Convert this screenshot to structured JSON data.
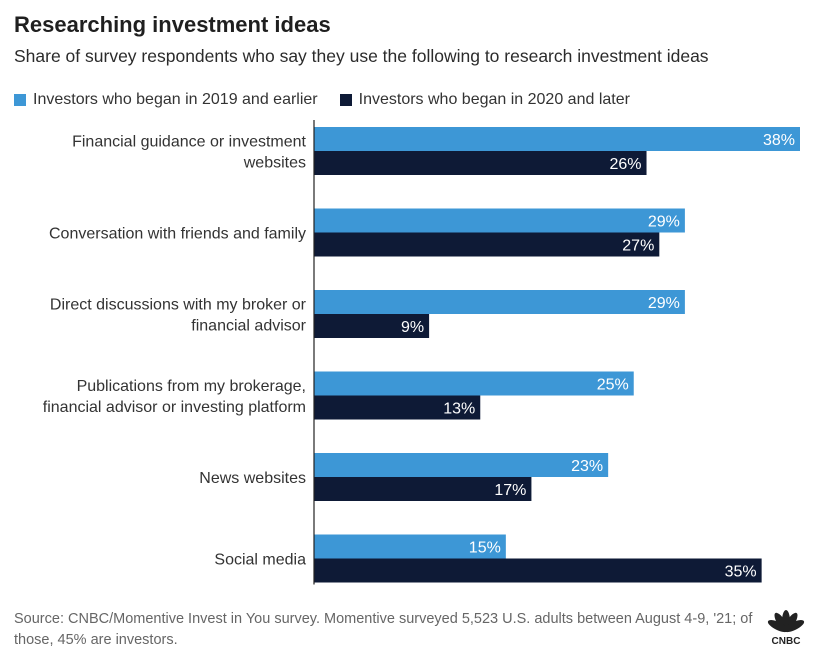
{
  "header": {
    "title": "Researching investment ideas",
    "subtitle": "Share of survey respondents who say they use the following to research investment ideas"
  },
  "legend": {
    "items": [
      {
        "label": "Investors who began in 2019 and earlier",
        "color": "#3d97d6"
      },
      {
        "label": "Investors who began in 2020 and later",
        "color": "#0e1a36"
      }
    ]
  },
  "chart_data": {
    "type": "bar",
    "orientation": "horizontal",
    "categories": [
      [
        "Financial guidance or investment",
        "websites"
      ],
      [
        "Conversation with friends and family"
      ],
      [
        "Direct discussions with my broker or",
        "financial advisor"
      ],
      [
        "Publications from my brokerage,",
        "financial advisor or investing platform"
      ],
      [
        "News websites"
      ],
      [
        "Social media"
      ]
    ],
    "series": [
      {
        "name": "Investors who began in 2019 and earlier",
        "color": "#3d97d6",
        "values": [
          38,
          29,
          29,
          25,
          23,
          15
        ]
      },
      {
        "name": "Investors who began in 2020 and later",
        "color": "#0e1a36",
        "values": [
          26,
          27,
          9,
          13,
          17,
          35
        ]
      }
    ],
    "value_suffix": "%",
    "xlim": [
      0,
      38
    ],
    "grid": false,
    "legend_position": "top-left"
  },
  "footer": {
    "source": "Source: CNBC/Momentive Invest in You survey. Momentive surveyed 5,523 U.S. adults between August 4-9, '21; of those, 45% are investors.",
    "logo_text": "CNBC"
  }
}
